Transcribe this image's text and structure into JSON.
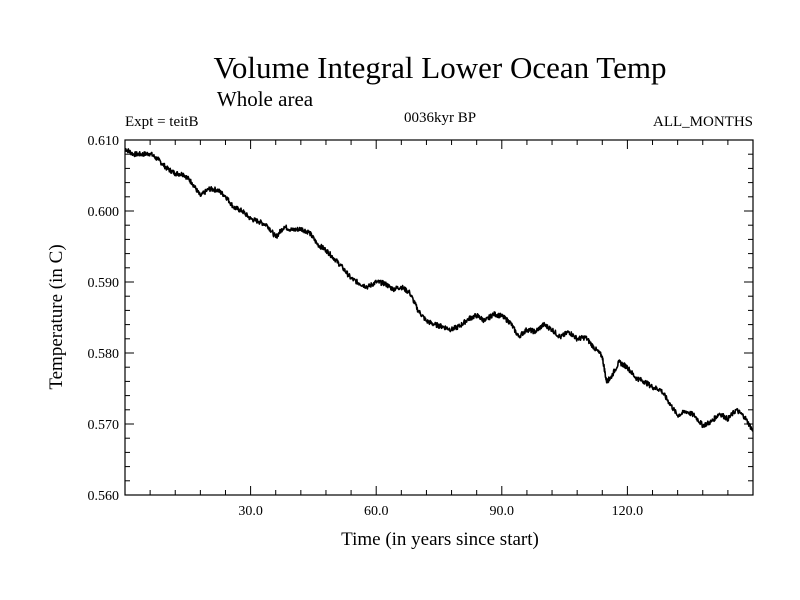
{
  "chart_data": {
    "type": "line",
    "title": "Volume Integral Lower Ocean Temp",
    "subtitle": "Whole area",
    "experiment": "Expt = teitB",
    "period": "0036kyr BP",
    "months": "ALL_MONTHS",
    "xlabel": "Time (in years since start)",
    "ylabel": "Temperature (in C)",
    "xlim": [
      0,
      150
    ],
    "ylim": [
      0.56,
      0.61
    ],
    "x_ticks": [
      30,
      60,
      90,
      120
    ],
    "x_tick_labels": [
      "30.0",
      "60.0",
      "90.0",
      "120.0"
    ],
    "y_ticks": [
      0.56,
      0.57,
      0.58,
      0.59,
      0.6,
      0.61
    ],
    "y_tick_labels": [
      "0.560",
      "0.570",
      "0.580",
      "0.590",
      "0.600",
      "0.610"
    ],
    "grid": false,
    "series": [
      {
        "name": "Temperature",
        "color": "#000000",
        "x": [
          0,
          2,
          4,
          6,
          8,
          10,
          12,
          14,
          16,
          18,
          20,
          22,
          24,
          26,
          28,
          30,
          32,
          34,
          36,
          38,
          40,
          42,
          44,
          46,
          48,
          50,
          52,
          54,
          56,
          58,
          60,
          62,
          64,
          66,
          68,
          70,
          72,
          74,
          76,
          78,
          80,
          82,
          84,
          86,
          88,
          90,
          92,
          94,
          96,
          98,
          100,
          102,
          104,
          106,
          108,
          110,
          112,
          114,
          115,
          116,
          118,
          120,
          122,
          124,
          126,
          128,
          130,
          132,
          134,
          136,
          138,
          140,
          142,
          144,
          146,
          148,
          150
        ],
        "values": [
          0.6088,
          0.608,
          0.608,
          0.6081,
          0.6072,
          0.606,
          0.6053,
          0.6052,
          0.604,
          0.6021,
          0.6031,
          0.603,
          0.6021,
          0.6005,
          0.6,
          0.5989,
          0.5985,
          0.598,
          0.5963,
          0.5978,
          0.5973,
          0.5975,
          0.597,
          0.5953,
          0.5945,
          0.5933,
          0.592,
          0.5905,
          0.5898,
          0.5893,
          0.59,
          0.5898,
          0.589,
          0.5893,
          0.5885,
          0.586,
          0.5845,
          0.584,
          0.5837,
          0.5833,
          0.5838,
          0.5848,
          0.5853,
          0.5845,
          0.5855,
          0.5852,
          0.5843,
          0.5823,
          0.5833,
          0.583,
          0.584,
          0.5833,
          0.5822,
          0.583,
          0.582,
          0.5822,
          0.5808,
          0.5795,
          0.576,
          0.5765,
          0.5787,
          0.578,
          0.5765,
          0.576,
          0.5752,
          0.5748,
          0.573,
          0.5712,
          0.5718,
          0.5712,
          0.5698,
          0.5703,
          0.5715,
          0.5707,
          0.572,
          0.571,
          0.569
        ]
      }
    ]
  }
}
